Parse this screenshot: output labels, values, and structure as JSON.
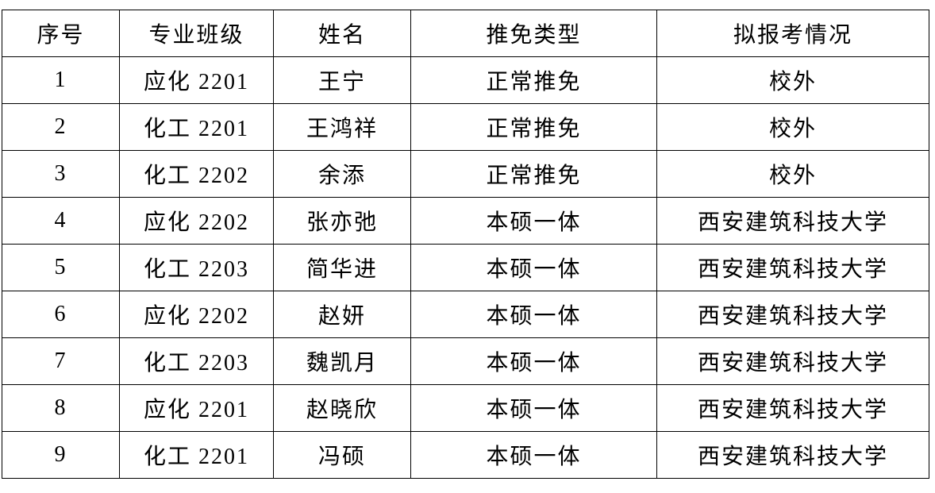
{
  "table": {
    "header": [
      "序号",
      "专业班级",
      "姓名",
      "推免类型",
      "拟报考情况"
    ],
    "rows": [
      [
        "1",
        "应化 2201",
        "王宁",
        "正常推免",
        "校外"
      ],
      [
        "2",
        "化工 2201",
        "王鸿祥",
        "正常推免",
        "校外"
      ],
      [
        "3",
        "化工 2202",
        "余添",
        "正常推免",
        "校外"
      ],
      [
        "4",
        "应化 2202",
        "张亦弛",
        "本硕一体",
        "西安建筑科技大学"
      ],
      [
        "5",
        "化工 2203",
        "简华进",
        "本硕一体",
        "西安建筑科技大学"
      ],
      [
        "6",
        "应化 2202",
        "赵妍",
        "本硕一体",
        "西安建筑科技大学"
      ],
      [
        "7",
        "化工 2203",
        "魏凯月",
        "本硕一体",
        "西安建筑科技大学"
      ],
      [
        "8",
        "应化 2201",
        "赵晓欣",
        "本硕一体",
        "西安建筑科技大学"
      ],
      [
        "9",
        "化工 2201",
        "冯硕",
        "本硕一体",
        "西安建筑科技大学"
      ]
    ]
  }
}
